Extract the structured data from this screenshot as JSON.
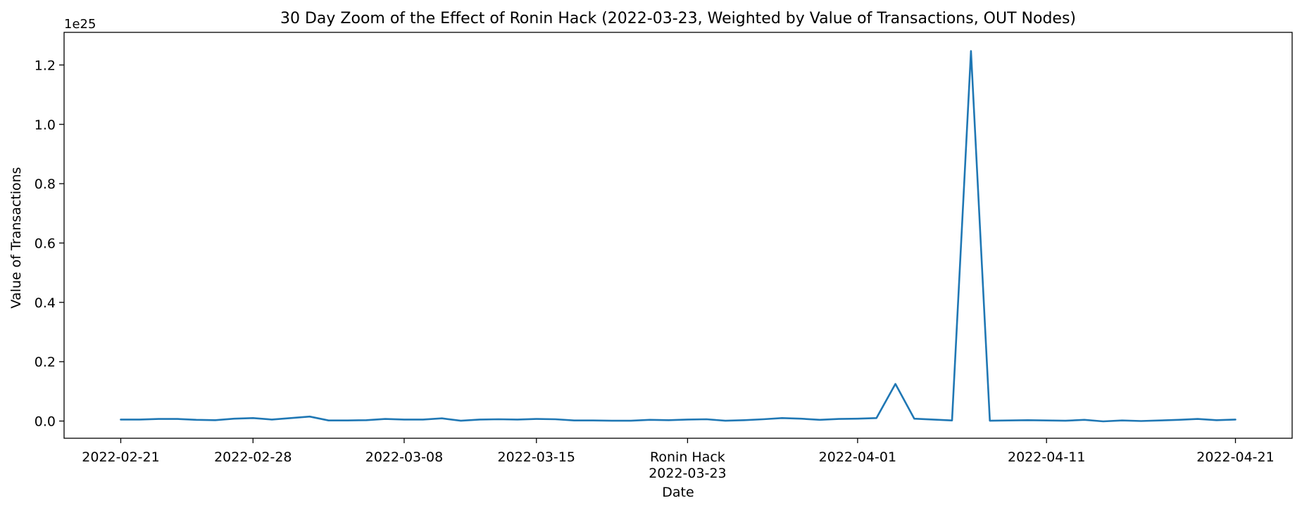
{
  "chart_data": {
    "type": "line",
    "title": "30 Day Zoom of the Effect of Ronin Hack (2022-03-23, Weighted by Value of Transactions, OUT Nodes)",
    "xlabel": "Date",
    "ylabel": "Value of Transactions",
    "y_offset_label": "1e25",
    "y_scale": 1e+25,
    "ylim": [
      -0.058,
      1.31
    ],
    "yticks": [
      0.0,
      0.2,
      0.4,
      0.6,
      0.8,
      1.0,
      1.2
    ],
    "ytick_labels": [
      "0.0",
      "0.2",
      "0.4",
      "0.6",
      "0.8",
      "1.0",
      "1.2"
    ],
    "xlim": [
      "2022-02-18",
      "2022-04-24"
    ],
    "xticks": [
      {
        "date": "2022-02-21",
        "label": "2022-02-21"
      },
      {
        "date": "2022-02-28",
        "label": "2022-02-28"
      },
      {
        "date": "2022-03-08",
        "label": "2022-03-08"
      },
      {
        "date": "2022-03-15",
        "label": "2022-03-15"
      },
      {
        "date": "2022-03-23",
        "label": "Ronin Hack",
        "label2": "2022-03-23"
      },
      {
        "date": "2022-04-01",
        "label": "2022-04-01"
      },
      {
        "date": "2022-04-11",
        "label": "2022-04-11"
      },
      {
        "date": "2022-04-21",
        "label": "2022-04-21"
      }
    ],
    "grid": false,
    "line_color": "#1f77b4",
    "series": [
      {
        "x": [
          "2022-02-21",
          "2022-02-22",
          "2022-02-23",
          "2022-02-24",
          "2022-02-25",
          "2022-02-26",
          "2022-02-27",
          "2022-02-28",
          "2022-03-01",
          "2022-03-02",
          "2022-03-03",
          "2022-03-04",
          "2022-03-05",
          "2022-03-06",
          "2022-03-07",
          "2022-03-08",
          "2022-03-09",
          "2022-03-10",
          "2022-03-11",
          "2022-03-12",
          "2022-03-13",
          "2022-03-14",
          "2022-03-15",
          "2022-03-16",
          "2022-03-17",
          "2022-03-18",
          "2022-03-19",
          "2022-03-20",
          "2022-03-21",
          "2022-03-22",
          "2022-03-23",
          "2022-03-24",
          "2022-03-25",
          "2022-03-26",
          "2022-03-27",
          "2022-03-28",
          "2022-03-29",
          "2022-03-30",
          "2022-03-31",
          "2022-04-01",
          "2022-04-02",
          "2022-04-03",
          "2022-04-04",
          "2022-04-05",
          "2022-04-06",
          "2022-04-07",
          "2022-04-08",
          "2022-04-09",
          "2022-04-10",
          "2022-04-11",
          "2022-04-12",
          "2022-04-13",
          "2022-04-14",
          "2022-04-15",
          "2022-04-16",
          "2022-04-17",
          "2022-04-18",
          "2022-04-19",
          "2022-04-20",
          "2022-04-21"
        ],
        "values": [
          0.005,
          0.005,
          0.007,
          0.007,
          0.004,
          0.003,
          0.008,
          0.01,
          0.005,
          0.01,
          0.015,
          0.002,
          0.002,
          0.003,
          0.007,
          0.005,
          0.005,
          0.009,
          0.001,
          0.005,
          0.006,
          0.005,
          0.007,
          0.006,
          0.002,
          0.002,
          0.001,
          0.001,
          0.004,
          0.003,
          0.005,
          0.006,
          0.001,
          0.003,
          0.006,
          0.01,
          0.008,
          0.004,
          0.007,
          0.008,
          0.01,
          0.125,
          0.008,
          0.005,
          0.002,
          1.247,
          0.001,
          0.002,
          0.003,
          0.002,
          0.001,
          0.004,
          -0.001,
          0.002,
          0.0,
          0.002,
          0.004,
          0.007,
          0.003,
          0.005
        ]
      }
    ]
  }
}
